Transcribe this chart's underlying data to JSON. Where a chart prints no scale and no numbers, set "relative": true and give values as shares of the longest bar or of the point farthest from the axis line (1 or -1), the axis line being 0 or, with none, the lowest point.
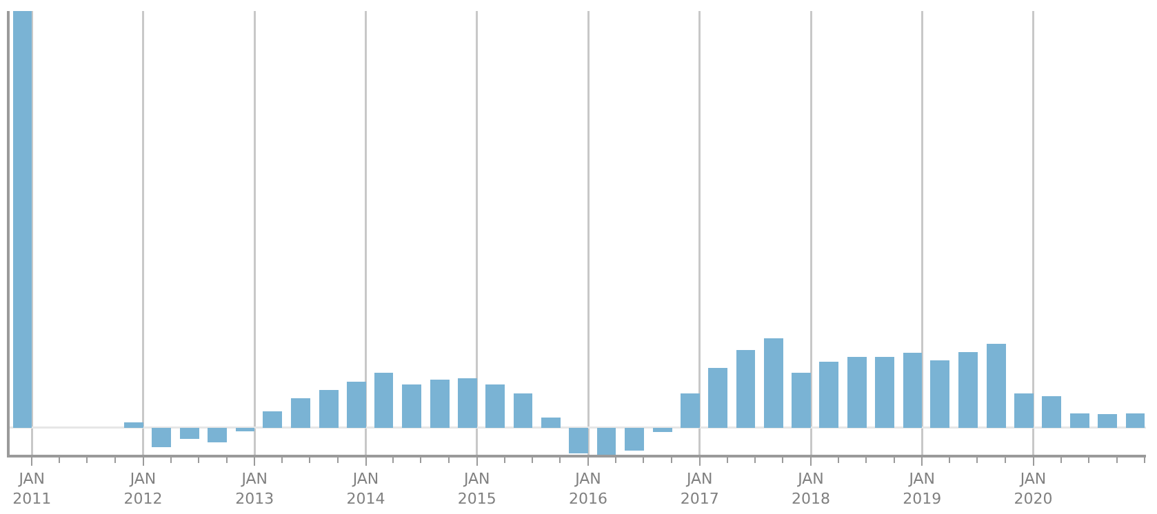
{
  "chart_data": {
    "type": "bar",
    "relative": true,
    "color": "#7ab3d4",
    "x": [
      "2010-12",
      "2011-03",
      "2011-06",
      "2011-09",
      "2011-12",
      "2012-03",
      "2012-06",
      "2012-09",
      "2012-12",
      "2013-03",
      "2013-06",
      "2013-09",
      "2013-12",
      "2014-03",
      "2014-06",
      "2014-09",
      "2014-12",
      "2015-03",
      "2015-06",
      "2015-09",
      "2015-12",
      "2016-03",
      "2016-06",
      "2016-09",
      "2016-12",
      "2017-03",
      "2017-06",
      "2017-09",
      "2017-12",
      "2018-03",
      "2018-06",
      "2018-09",
      "2018-12",
      "2019-03",
      "2019-06",
      "2019-09",
      "2019-12",
      "2020-03",
      "2020-06",
      "2020-09",
      "2020-12"
    ],
    "values": [
      1,
      null,
      null,
      null,
      0.012,
      -0.047,
      -0.027,
      -0.035,
      -0.008,
      0.039,
      0.071,
      0.091,
      0.111,
      0.131,
      0.103,
      0.115,
      0.118,
      0.103,
      0.083,
      0.024,
      -0.062,
      -0.065,
      -0.055,
      -0.011,
      0.083,
      0.143,
      0.186,
      0.214,
      0.131,
      0.158,
      0.17,
      0.17,
      0.179,
      0.162,
      0.182,
      0.202,
      0.083,
      0.076,
      0.035,
      0.032,
      0.035
    ],
    "xlim": [
      "2010-10-20",
      "2021-01-05"
    ],
    "xticks": [
      {
        "value": "2011-01-01",
        "label": "JAN\n2011"
      },
      {
        "value": "2012-01-01",
        "label": "JAN\n2012"
      },
      {
        "value": "2013-01-01",
        "label": "JAN\n2013"
      },
      {
        "value": "2014-01-01",
        "label": "JAN\n2014"
      },
      {
        "value": "2015-01-01",
        "label": "JAN\n2015"
      },
      {
        "value": "2016-01-01",
        "label": "JAN\n2016"
      },
      {
        "value": "2017-01-01",
        "label": "JAN\n2017"
      },
      {
        "value": "2018-01-01",
        "label": "JAN\n2018"
      },
      {
        "value": "2019-01-01",
        "label": "JAN\n2019"
      },
      {
        "value": "2020-01-01",
        "label": "JAN\n2020"
      }
    ],
    "grid": "x",
    "legend": false
  }
}
